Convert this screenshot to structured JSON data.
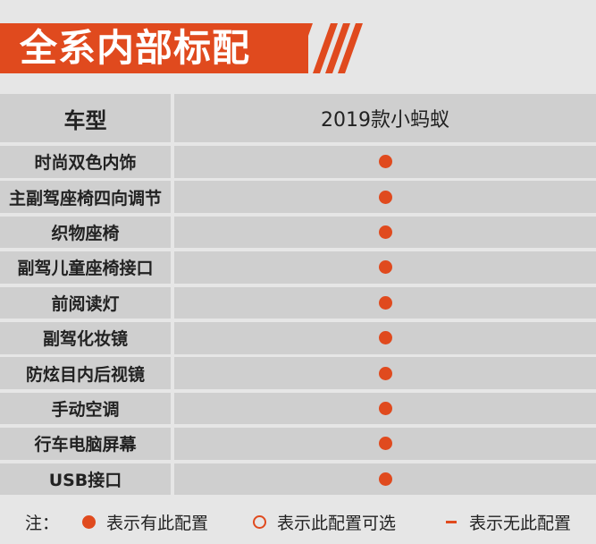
{
  "title": "全系内部标配",
  "table": {
    "header": {
      "col1": "车型",
      "col2": "2019款小蚂蚁"
    },
    "rows": [
      {
        "feature": "时尚双色内饰",
        "status": "standard"
      },
      {
        "feature": "主副驾座椅四向调节",
        "status": "standard"
      },
      {
        "feature": "织物座椅",
        "status": "standard"
      },
      {
        "feature": "副驾儿童座椅接口",
        "status": "standard"
      },
      {
        "feature": "前阅读灯",
        "status": "standard"
      },
      {
        "feature": "副驾化妆镜",
        "status": "standard"
      },
      {
        "feature": "防炫目内后视镜",
        "status": "standard"
      },
      {
        "feature": "手动空调",
        "status": "standard"
      },
      {
        "feature": "行车电脑屏幕",
        "status": "standard"
      },
      {
        "feature": "USB接口",
        "status": "standard"
      }
    ]
  },
  "legend": {
    "prefix": "注：",
    "standard": "表示有此配置",
    "optional": "表示此配置可选",
    "none": "表示无此配置"
  },
  "colors": {
    "accent": "#e04a1e",
    "cell": "#cfcfcf",
    "background": "#e6e6e6"
  }
}
